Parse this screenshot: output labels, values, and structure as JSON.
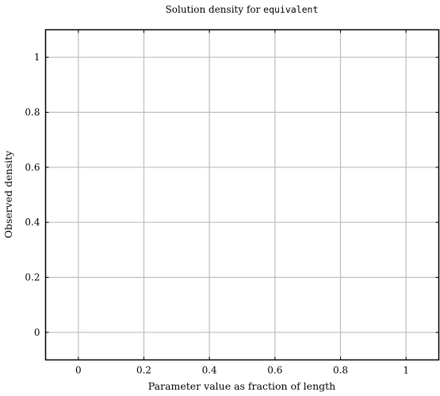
{
  "chart_data": {
    "type": "line",
    "title": {
      "text": "Solution density for ",
      "code": "equivalent"
    },
    "xlabel": "Parameter value as fraction of length",
    "ylabel": "Observed density",
    "xlim": [
      -0.1,
      1.1
    ],
    "ylim": [
      -0.1,
      1.1
    ],
    "x_ticks": [
      0,
      0.2,
      0.4,
      0.6,
      0.8,
      1
    ],
    "x_tick_labels": [
      "0",
      "0.2",
      "0.4",
      "0.6",
      "0.8",
      "1"
    ],
    "y_ticks": [
      0,
      0.2,
      0.4,
      0.6,
      0.8,
      1
    ],
    "y_tick_labels": [
      "0",
      "0.2",
      "0.4",
      "0.6",
      "0.8",
      "1"
    ],
    "grid": true,
    "series": [],
    "colors": {
      "grid": "#bdbdbd",
      "frame": "#000000",
      "text": "#000000"
    }
  }
}
